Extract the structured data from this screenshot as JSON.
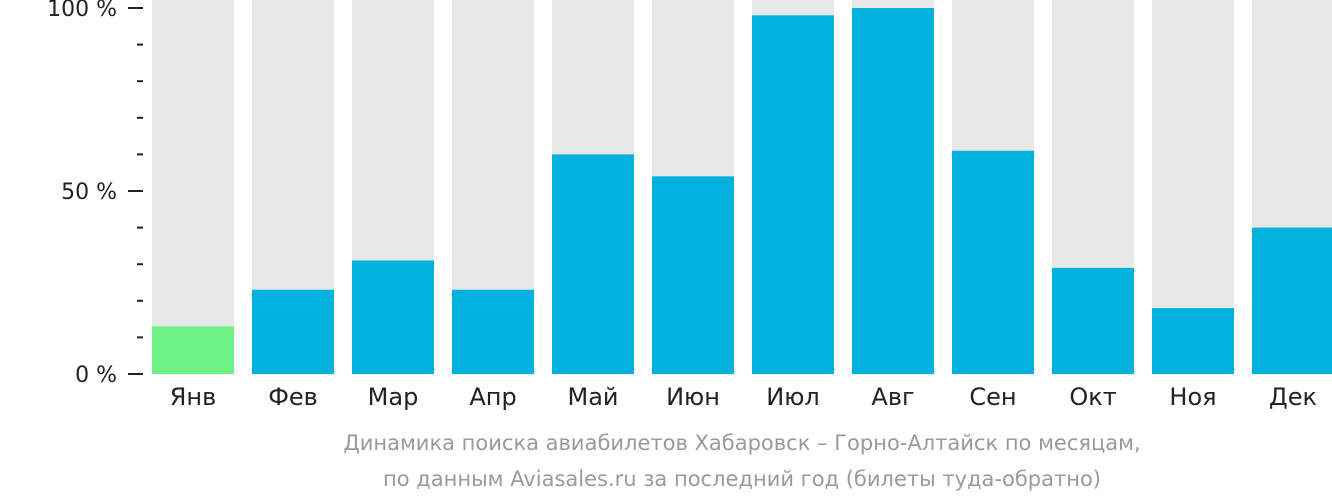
{
  "chart_data": {
    "type": "bar",
    "categories": [
      "Янв",
      "Фев",
      "Мар",
      "Апр",
      "Май",
      "Июн",
      "Июл",
      "Авг",
      "Сен",
      "Окт",
      "Ноя",
      "Дек"
    ],
    "values": [
      13,
      23,
      31,
      23,
      60,
      54,
      98,
      100,
      61,
      29,
      18,
      40
    ],
    "ylim": [
      0,
      100
    ],
    "y_ticks": [
      "0 %",
      "50 %",
      "100 %"
    ],
    "highlight_index": 0,
    "caption_line1": "Динамика поиска авиабилетов Хабаровск – Горно-Алтайск по месяцам,",
    "caption_line2": "по данным Aviasales.ru за последний год (билеты туда-обратно)",
    "colors": {
      "bar": "#02b1dd",
      "highlight": "#6ef184",
      "background_bar": "#e7e7e7",
      "axis": "#222222",
      "caption": "#9a9a9a"
    }
  }
}
